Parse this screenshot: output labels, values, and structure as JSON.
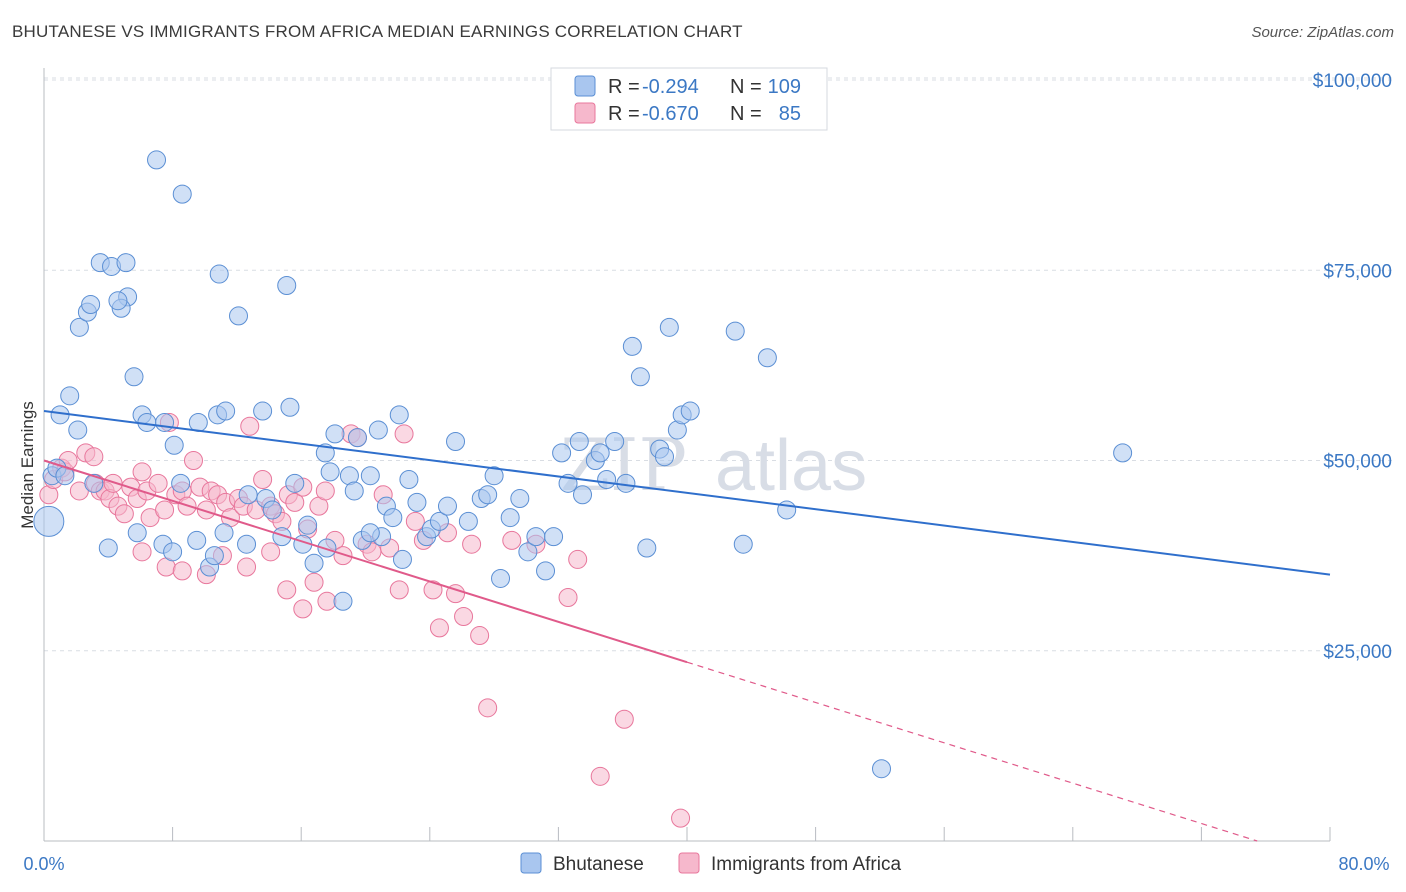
{
  "header": {
    "title": "BHUTANESE VS IMMIGRANTS FROM AFRICA MEDIAN EARNINGS CORRELATION CHART",
    "source": "Source: ZipAtlas.com"
  },
  "watermark": {
    "zip": "ZIP",
    "atlas": "atlas"
  },
  "legend": {
    "rows": [
      {
        "r_label": "R =",
        "r_value": "-0.294",
        "n_label": "N =",
        "n_value": "109"
      },
      {
        "r_label": "R =",
        "r_value": "-0.670",
        "n_label": "N =",
        "n_value": "85"
      }
    ]
  },
  "colors": {
    "bhutanese_fill": "#a9c6ef",
    "bhutanese_stroke": "#5b8fd4",
    "bhutanese_line": "#2f6fcc",
    "africa_fill": "#f6b8cc",
    "africa_stroke": "#e8779c",
    "africa_line": "#e05a8a",
    "axis_text": "#3b78c4",
    "grid": "#d9dde3"
  },
  "chart_data": {
    "type": "scatter",
    "title": "BHUTANESE VS IMMIGRANTS FROM AFRICA MEDIAN EARNINGS CORRELATION CHART",
    "xlabel": "",
    "ylabel": "Median Earnings",
    "xlim": [
      0,
      80
    ],
    "ylim": [
      0,
      105000
    ],
    "x_tick_labels": [
      "0.0%",
      "80.0%"
    ],
    "y_ticks": [
      25000,
      50000,
      75000,
      100000
    ],
    "y_tick_labels": [
      "$25,000",
      "$50,000",
      "$75,000",
      "$100,000"
    ],
    "grid": true,
    "legend_position": "top-center",
    "series": [
      {
        "name": "Bhutanese",
        "r": -0.294,
        "n": 109,
        "trend": {
          "x": [
            0,
            80
          ],
          "y": [
            56500,
            35000
          ],
          "dashed_from": null
        },
        "points": [
          [
            0.3,
            42000
          ],
          [
            0.5,
            48000
          ],
          [
            0.8,
            49000
          ],
          [
            1.0,
            56000
          ],
          [
            1.6,
            58500
          ],
          [
            2.1,
            54000
          ],
          [
            2.2,
            67500
          ],
          [
            2.7,
            69500
          ],
          [
            2.9,
            70500
          ],
          [
            3.5,
            76000
          ],
          [
            4.2,
            75500
          ],
          [
            5.1,
            76000
          ],
          [
            5.2,
            71500
          ],
          [
            4.8,
            70000
          ],
          [
            4.6,
            71000
          ],
          [
            5.6,
            61000
          ],
          [
            6.1,
            56000
          ],
          [
            6.4,
            55000
          ],
          [
            7.0,
            89500
          ],
          [
            7.5,
            55000
          ],
          [
            8.6,
            85000
          ],
          [
            8.1,
            52000
          ],
          [
            8.5,
            47000
          ],
          [
            9.6,
            55000
          ],
          [
            10.8,
            56000
          ],
          [
            10.9,
            74500
          ],
          [
            11.3,
            56500
          ],
          [
            12.1,
            69000
          ],
          [
            13.6,
            56500
          ],
          [
            15.1,
            73000
          ],
          [
            15.3,
            57000
          ],
          [
            13.8,
            45000
          ],
          [
            12.7,
            45500
          ],
          [
            14.2,
            43500
          ],
          [
            15.6,
            47000
          ],
          [
            16.4,
            41500
          ],
          [
            17.5,
            51000
          ],
          [
            17.8,
            48500
          ],
          [
            18.1,
            53500
          ],
          [
            19.0,
            48000
          ],
          [
            19.3,
            46000
          ],
          [
            19.5,
            53000
          ],
          [
            20.3,
            48000
          ],
          [
            20.8,
            54000
          ],
          [
            21.3,
            44000
          ],
          [
            21.7,
            42500
          ],
          [
            21.0,
            40000
          ],
          [
            22.1,
            56000
          ],
          [
            22.7,
            47500
          ],
          [
            23.2,
            44500
          ],
          [
            23.8,
            40000
          ],
          [
            24.1,
            41000
          ],
          [
            24.6,
            42000
          ],
          [
            25.1,
            44000
          ],
          [
            25.6,
            52500
          ],
          [
            26.4,
            42000
          ],
          [
            27.2,
            45000
          ],
          [
            27.6,
            45500
          ],
          [
            28.0,
            48000
          ],
          [
            28.4,
            34500
          ],
          [
            29.0,
            42500
          ],
          [
            29.6,
            45000
          ],
          [
            30.1,
            38000
          ],
          [
            30.6,
            40000
          ],
          [
            31.2,
            35500
          ],
          [
            31.7,
            40000
          ],
          [
            32.2,
            51000
          ],
          [
            32.6,
            47000
          ],
          [
            33.3,
            52500
          ],
          [
            33.5,
            45500
          ],
          [
            34.3,
            50000
          ],
          [
            34.6,
            51000
          ],
          [
            35.0,
            47500
          ],
          [
            35.5,
            52500
          ],
          [
            36.2,
            47000
          ],
          [
            36.6,
            65000
          ],
          [
            37.1,
            61000
          ],
          [
            37.5,
            38500
          ],
          [
            38.3,
            51500
          ],
          [
            38.6,
            50500
          ],
          [
            38.9,
            67500
          ],
          [
            39.4,
            54000
          ],
          [
            39.7,
            56000
          ],
          [
            40.2,
            56500
          ],
          [
            43.0,
            67000
          ],
          [
            43.5,
            39000
          ],
          [
            45.0,
            63500
          ],
          [
            46.2,
            43500
          ],
          [
            67.1,
            51000
          ],
          [
            52.1,
            9500
          ],
          [
            3.1,
            47000
          ],
          [
            4.0,
            38500
          ],
          [
            5.8,
            40500
          ],
          [
            7.4,
            39000
          ],
          [
            8.0,
            38000
          ],
          [
            9.5,
            39500
          ],
          [
            10.3,
            36000
          ],
          [
            10.6,
            37500
          ],
          [
            11.2,
            40500
          ],
          [
            12.6,
            39000
          ],
          [
            14.8,
            40000
          ],
          [
            16.1,
            39000
          ],
          [
            16.8,
            36500
          ],
          [
            17.6,
            38500
          ],
          [
            18.6,
            31500
          ],
          [
            19.8,
            39500
          ],
          [
            20.3,
            40500
          ],
          [
            22.3,
            37000
          ],
          [
            1.3,
            48000
          ]
        ]
      },
      {
        "name": "Immigrants from Africa",
        "r": -0.67,
        "n": 85,
        "trend": {
          "x": [
            0,
            80
          ],
          "y": [
            50000,
            -3000
          ],
          "dashed_from": 40
        },
        "points": [
          [
            0.3,
            45500
          ],
          [
            0.6,
            47500
          ],
          [
            1.1,
            49000
          ],
          [
            1.3,
            48500
          ],
          [
            1.5,
            50000
          ],
          [
            2.2,
            46000
          ],
          [
            2.6,
            51000
          ],
          [
            3.1,
            50500
          ],
          [
            3.2,
            47000
          ],
          [
            3.5,
            46000
          ],
          [
            3.8,
            46000
          ],
          [
            4.1,
            45000
          ],
          [
            4.3,
            47000
          ],
          [
            4.6,
            44000
          ],
          [
            5.0,
            43000
          ],
          [
            5.4,
            46500
          ],
          [
            5.8,
            45000
          ],
          [
            6.1,
            48500
          ],
          [
            6.4,
            46000
          ],
          [
            6.6,
            42500
          ],
          [
            7.1,
            47000
          ],
          [
            7.5,
            43500
          ],
          [
            7.8,
            55000
          ],
          [
            8.2,
            45500
          ],
          [
            8.6,
            46000
          ],
          [
            8.9,
            44000
          ],
          [
            9.3,
            50000
          ],
          [
            9.7,
            46500
          ],
          [
            10.1,
            43500
          ],
          [
            10.4,
            46000
          ],
          [
            10.8,
            45500
          ],
          [
            11.3,
            44500
          ],
          [
            11.6,
            42500
          ],
          [
            12.1,
            45000
          ],
          [
            12.4,
            44000
          ],
          [
            12.8,
            54500
          ],
          [
            13.2,
            43500
          ],
          [
            13.6,
            47500
          ],
          [
            14.1,
            44000
          ],
          [
            14.4,
            43000
          ],
          [
            14.8,
            42000
          ],
          [
            15.2,
            45500
          ],
          [
            15.6,
            44500
          ],
          [
            16.1,
            46500
          ],
          [
            16.4,
            41000
          ],
          [
            17.1,
            44000
          ],
          [
            17.5,
            46000
          ],
          [
            18.1,
            39500
          ],
          [
            18.6,
            37500
          ],
          [
            19.1,
            53500
          ],
          [
            19.5,
            53000
          ],
          [
            20.1,
            39000
          ],
          [
            20.4,
            38000
          ],
          [
            21.1,
            45500
          ],
          [
            21.5,
            38500
          ],
          [
            22.1,
            33000
          ],
          [
            22.4,
            53500
          ],
          [
            23.1,
            42000
          ],
          [
            23.6,
            39500
          ],
          [
            24.2,
            33000
          ],
          [
            24.6,
            28000
          ],
          [
            25.1,
            40500
          ],
          [
            25.6,
            32500
          ],
          [
            26.1,
            29500
          ],
          [
            26.6,
            39000
          ],
          [
            27.1,
            27000
          ],
          [
            27.6,
            17500
          ],
          [
            29.1,
            39500
          ],
          [
            30.6,
            39000
          ],
          [
            32.6,
            32000
          ],
          [
            33.2,
            37000
          ],
          [
            34.6,
            8500
          ],
          [
            36.1,
            16000
          ],
          [
            39.6,
            3000
          ],
          [
            6.1,
            38000
          ],
          [
            7.6,
            36000
          ],
          [
            8.6,
            35500
          ],
          [
            10.1,
            35000
          ],
          [
            11.1,
            37500
          ],
          [
            12.6,
            36000
          ],
          [
            14.1,
            38000
          ],
          [
            15.1,
            33000
          ],
          [
            16.1,
            30500
          ],
          [
            16.8,
            34000
          ],
          [
            17.6,
            31500
          ]
        ]
      }
    ]
  },
  "bottom_legend": {
    "items": [
      {
        "label": "Bhutanese"
      },
      {
        "label": "Immigrants from Africa"
      }
    ]
  }
}
